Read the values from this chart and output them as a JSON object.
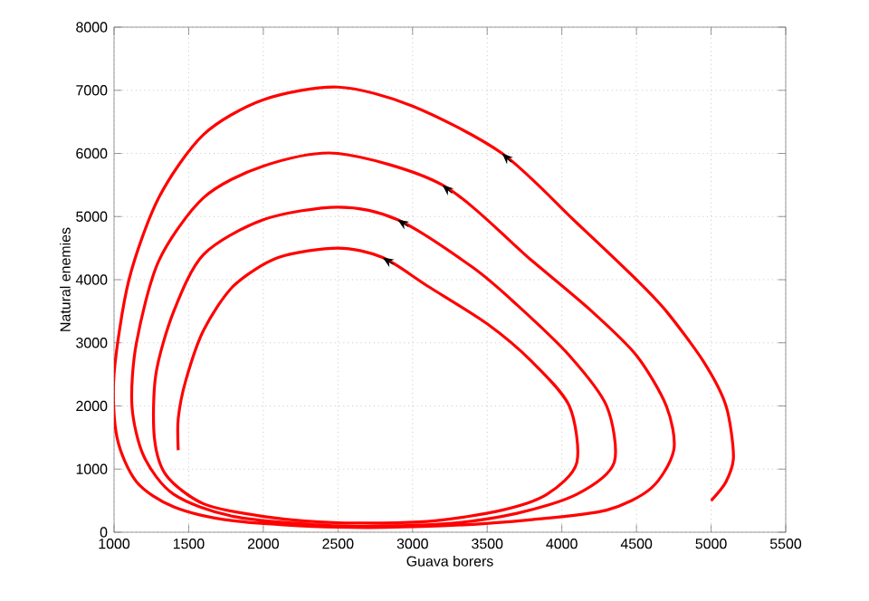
{
  "chart_data": {
    "type": "line",
    "xlabel": "Guava borers",
    "ylabel": "Natural enemies",
    "xlim": [
      1000,
      5500
    ],
    "ylim": [
      0,
      8000
    ],
    "xticks": [
      1000,
      1500,
      2000,
      2500,
      3000,
      3500,
      4000,
      4500,
      5000,
      5500
    ],
    "yticks": [
      0,
      1000,
      2000,
      3000,
      4000,
      5000,
      6000,
      7000,
      8000
    ],
    "grid": true,
    "marker": "none",
    "line_style": "solid",
    "series": [
      {
        "color": "#ff0000",
        "x": [
          5000,
          5100,
          5150,
          5100,
          4950,
          4700,
          4500,
          4100,
          3600,
          3000,
          2500,
          2000,
          1600,
          1300,
          1100,
          1000,
          1020,
          1150,
          1400,
          1800,
          2500,
          3200,
          3800,
          4300,
          4600,
          4750,
          4700,
          4500,
          4200,
          3800,
          3200,
          2500,
          2000,
          1600,
          1300,
          1150,
          1120,
          1200,
          1400,
          1800,
          2500,
          3200,
          3700,
          4100,
          4350,
          4300,
          4050,
          3700,
          3400,
          2900,
          2500,
          2000,
          1600,
          1400,
          1280,
          1270,
          1350,
          1600,
          2000,
          2500,
          3100,
          3600,
          3900,
          4100,
          4050,
          3800,
          3500,
          3100,
          2800,
          2500,
          2100,
          1800,
          1600,
          1480,
          1430,
          1430
        ],
        "values": [
          500,
          800,
          1200,
          2000,
          2700,
          3500,
          4000,
          4900,
          6000,
          6750,
          7050,
          6850,
          6300,
          5300,
          4000,
          2500,
          1500,
          800,
          400,
          180,
          80,
          100,
          200,
          350,
          700,
          1300,
          2000,
          2800,
          3500,
          4300,
          5500,
          6000,
          5800,
          5300,
          4300,
          3000,
          2000,
          1200,
          600,
          250,
          100,
          130,
          300,
          600,
          1100,
          2000,
          2800,
          3600,
          4200,
          4950,
          5150,
          4950,
          4400,
          3500,
          2500,
          1500,
          900,
          450,
          250,
          150,
          170,
          350,
          600,
          1100,
          2000,
          2700,
          3300,
          3900,
          4350,
          4500,
          4350,
          3900,
          3200,
          2400,
          1800,
          1300
        ]
      }
    ]
  }
}
